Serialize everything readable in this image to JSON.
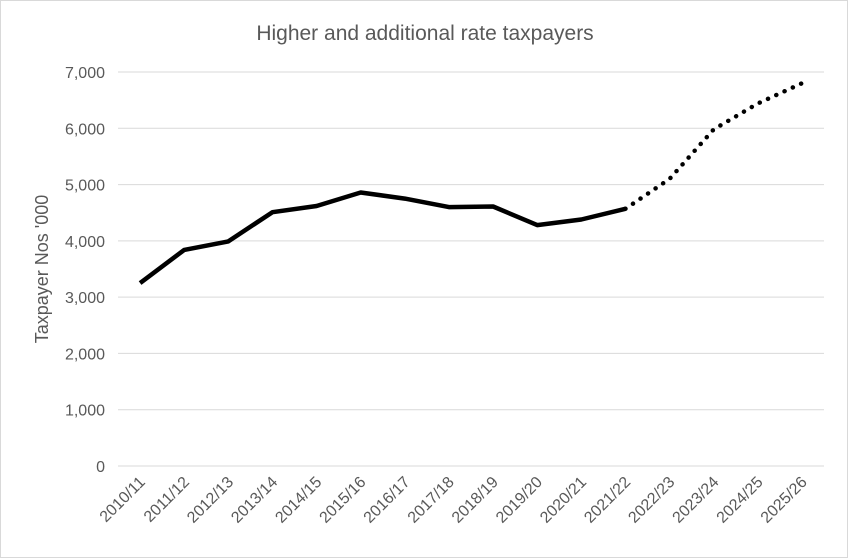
{
  "chart_data": {
    "type": "line",
    "title": "Higher and additional rate taxpayers",
    "xlabel": "",
    "ylabel": "Taxpayer Nos '000",
    "ylim": [
      0,
      7000
    ],
    "yticks": [
      "0",
      "1,000",
      "2,000",
      "3,000",
      "4,000",
      "5,000",
      "6,000",
      "7,000"
    ],
    "categories": [
      "2010/11",
      "2011/12",
      "2012/13",
      "2013/14",
      "2014/15",
      "2015/16",
      "2016/17",
      "2017/18",
      "2018/19",
      "2019/20",
      "2020/21",
      "2021/22",
      "2022/23",
      "2023/24",
      "2024/25",
      "2025/26"
    ],
    "series": [
      {
        "style": "solid",
        "color": "#000000",
        "values": [
          3250,
          3840,
          3990,
          4510,
          4620,
          4860,
          4750,
          4600,
          4610,
          4280,
          4380,
          4570,
          null,
          null,
          null,
          null
        ]
      },
      {
        "style": "dotted",
        "color": "#000000",
        "values": [
          null,
          null,
          null,
          null,
          null,
          null,
          null,
          null,
          null,
          null,
          null,
          4570,
          5100,
          5980,
          6440,
          6800
        ]
      }
    ],
    "grid": true,
    "legend": "none"
  }
}
